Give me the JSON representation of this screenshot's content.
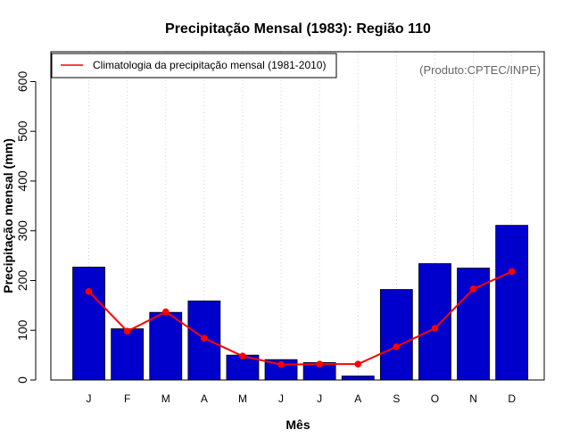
{
  "chart_data": {
    "type": "bar",
    "title": "Precipitação Mensal (1983): Região 110",
    "xlabel": "Mês",
    "ylabel": "Precipitação mensal (mm)",
    "ylim": [
      0,
      660
    ],
    "yticks": [
      0,
      100,
      200,
      300,
      400,
      500,
      600
    ],
    "categories": [
      "J",
      "F",
      "M",
      "A",
      "M",
      "J",
      "J",
      "A",
      "S",
      "O",
      "N",
      "D"
    ],
    "series": [
      {
        "name": "Precipitação mensal (1983)",
        "type": "bar",
        "color": "#0000CC",
        "values": [
          227,
          103,
          136,
          159,
          50,
          41,
          35,
          8,
          182,
          234,
          225,
          311
        ]
      },
      {
        "name": "Climatologia da precipitação mensal (1981-2010)",
        "type": "line",
        "color": "#FF0000",
        "values": [
          178,
          98,
          137,
          84,
          48,
          31,
          32,
          32,
          67,
          104,
          183,
          218
        ]
      }
    ],
    "legend": {
      "position": "top-left",
      "label": "Climatologia da precipitação mensal (1981-2010)"
    },
    "annotation": "(Produto:CPTEC/INPE)",
    "grid": "vertical-dotted"
  }
}
